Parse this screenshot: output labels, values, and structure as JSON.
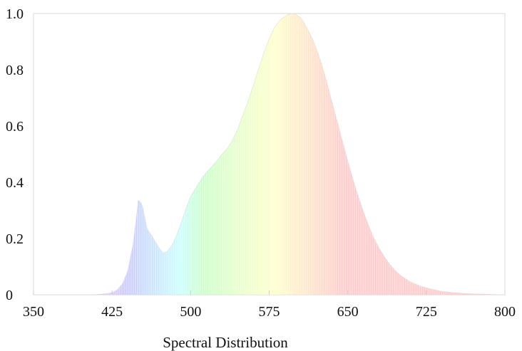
{
  "chart_data": {
    "type": "area",
    "title": "Spectral Distribution",
    "xlabel": "",
    "ylabel": "",
    "xlim": [
      350,
      800
    ],
    "ylim": [
      0,
      1.0
    ],
    "x_ticks": [
      "350",
      "425",
      "500",
      "575",
      "650",
      "725",
      "800"
    ],
    "y_ticks": [
      "0",
      "0.2",
      "0.4",
      "0.6",
      "0.8",
      "1.0"
    ],
    "grid": false,
    "fill": "wavelength-spectrum-colors",
    "series": [
      {
        "x": [
          350,
          400,
          410,
          420,
          425,
          430,
          435,
          440,
          445,
          448,
          450,
          452,
          454,
          456,
          458,
          460,
          463,
          466,
          470,
          474,
          478,
          482,
          486,
          490,
          495,
          500,
          505,
          510,
          515,
          520,
          525,
          530,
          535,
          540,
          545,
          550,
          555,
          560,
          565,
          570,
          575,
          580,
          585,
          590,
          595,
          600,
          603,
          605,
          607,
          610,
          615,
          620,
          625,
          630,
          635,
          640,
          645,
          650,
          655,
          660,
          665,
          670,
          675,
          680,
          685,
          690,
          695,
          700,
          710,
          720,
          730,
          740,
          750,
          760,
          770,
          780,
          790,
          800
        ],
        "y": [
          0.0,
          0.0,
          0.001,
          0.004,
          0.008,
          0.018,
          0.04,
          0.085,
          0.18,
          0.27,
          0.335,
          0.33,
          0.315,
          0.28,
          0.24,
          0.225,
          0.21,
          0.19,
          0.165,
          0.148,
          0.155,
          0.175,
          0.205,
          0.245,
          0.3,
          0.35,
          0.38,
          0.41,
          0.435,
          0.455,
          0.475,
          0.5,
          0.52,
          0.55,
          0.59,
          0.64,
          0.69,
          0.745,
          0.805,
          0.86,
          0.91,
          0.95,
          0.975,
          0.99,
          1.0,
          0.998,
          0.99,
          0.985,
          0.975,
          0.955,
          0.92,
          0.875,
          0.82,
          0.755,
          0.685,
          0.615,
          0.545,
          0.475,
          0.41,
          0.35,
          0.295,
          0.245,
          0.2,
          0.165,
          0.135,
          0.108,
          0.087,
          0.07,
          0.045,
          0.03,
          0.02,
          0.012,
          0.008,
          0.005,
          0.003,
          0.002,
          0.001,
          0.0
        ]
      }
    ]
  }
}
